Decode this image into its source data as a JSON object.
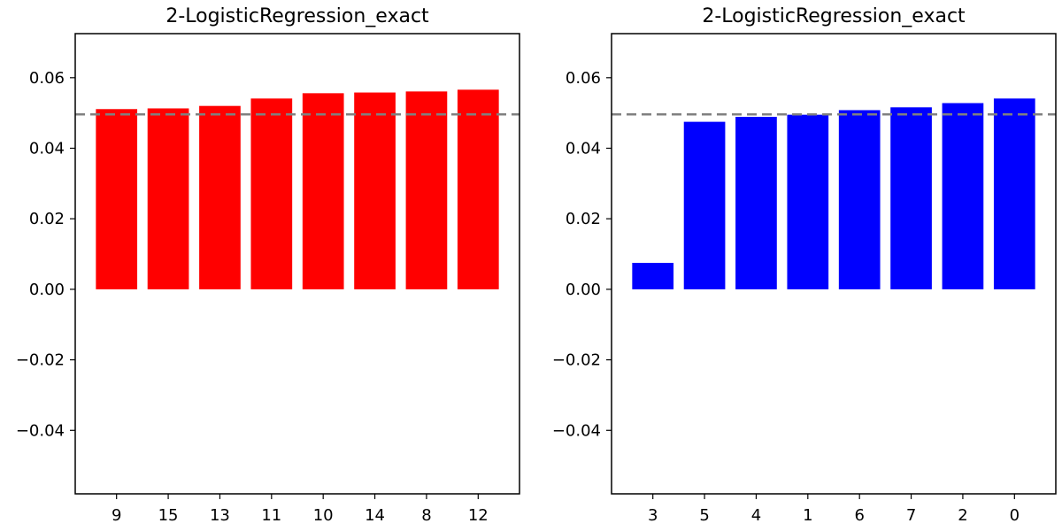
{
  "chart_data": [
    {
      "type": "bar",
      "title": "2-LogisticRegression_exact",
      "xlabel": "",
      "ylabel": "",
      "categories": [
        "9",
        "15",
        "13",
        "11",
        "10",
        "14",
        "8",
        "12"
      ],
      "values": [
        0.0511,
        0.0513,
        0.052,
        0.0541,
        0.0556,
        0.0558,
        0.0561,
        0.0566
      ],
      "bar_color": "#ff0000",
      "reference_line": {
        "y": 0.0496,
        "color": "#808080",
        "style": "dashed"
      },
      "ylim": [
        -0.058,
        0.0725
      ],
      "yticks": [
        -0.04,
        -0.02,
        0.0,
        0.02,
        0.04,
        0.06
      ],
      "ytick_labels": [
        "−0.04",
        "−0.02",
        "0.00",
        "0.02",
        "0.04",
        "0.06"
      ],
      "grid": false,
      "legend": "none"
    },
    {
      "type": "bar",
      "title": "2-LogisticRegression_exact",
      "xlabel": "",
      "ylabel": "",
      "categories": [
        "3",
        "5",
        "4",
        "1",
        "6",
        "7",
        "2",
        "0"
      ],
      "values": [
        0.0075,
        0.0475,
        0.0489,
        0.0495,
        0.0508,
        0.0516,
        0.0528,
        0.0541
      ],
      "bar_color": "#0000ff",
      "reference_line": {
        "y": 0.0496,
        "color": "#808080",
        "style": "dashed"
      },
      "ylim": [
        -0.058,
        0.0725
      ],
      "yticks": [
        -0.04,
        -0.02,
        0.0,
        0.02,
        0.04,
        0.06
      ],
      "ytick_labels": [
        "−0.04",
        "−0.02",
        "0.00",
        "0.02",
        "0.04",
        "0.06"
      ],
      "grid": false,
      "legend": "none"
    }
  ]
}
